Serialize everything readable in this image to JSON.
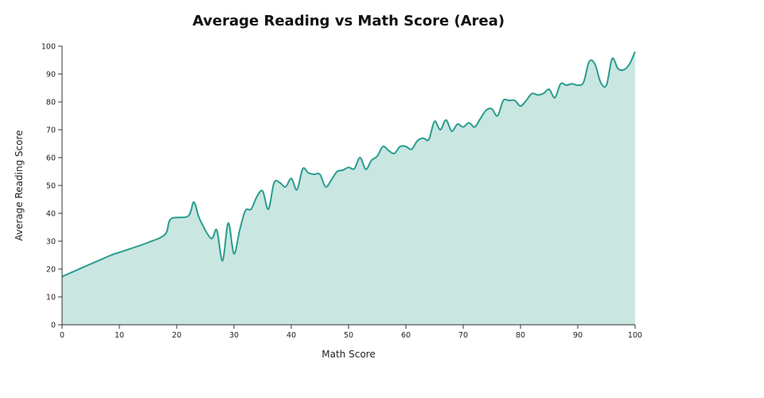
{
  "chart_data": {
    "type": "area",
    "title": "Average Reading vs Math Score (Area)",
    "xlabel": "Math Score",
    "ylabel": "Average Reading Score",
    "xlim": [
      0,
      100
    ],
    "ylim": [
      0,
      100
    ],
    "xticks": [
      0,
      10,
      20,
      30,
      40,
      50,
      60,
      70,
      80,
      90,
      100
    ],
    "yticks": [
      0,
      10,
      20,
      30,
      40,
      50,
      60,
      70,
      80,
      90,
      100
    ],
    "grid": false,
    "line_color": "#2a9d8f",
    "fill_color": "#c9e6e1",
    "series": [
      {
        "x": [
          0,
          8,
          10,
          15,
          18,
          19,
          22,
          23,
          24,
          26,
          27,
          28,
          29,
          30,
          31,
          32,
          33,
          34,
          35,
          36,
          37,
          38,
          39,
          40,
          41,
          42,
          43,
          44,
          45,
          46,
          47,
          48,
          49,
          50,
          51,
          52,
          53,
          54,
          55,
          56,
          57,
          58,
          59,
          60,
          61,
          62,
          63,
          64,
          65,
          66,
          67,
          68,
          69,
          70,
          71,
          72,
          73,
          74,
          75,
          76,
          77,
          78,
          79,
          80,
          81,
          82,
          83,
          84,
          85,
          86,
          87,
          88,
          89,
          90,
          91,
          92,
          93,
          94,
          95,
          96,
          97,
          98,
          99,
          100
        ],
        "y": [
          17.3,
          24.5,
          26,
          29.5,
          32.5,
          38,
          39,
          44,
          38,
          31,
          34,
          23,
          36.5,
          25.5,
          34,
          41,
          41.5,
          46,
          48,
          41.5,
          51,
          51,
          49.5,
          52.5,
          48.5,
          56,
          54.5,
          54,
          54,
          49.5,
          52,
          55,
          55.5,
          56.5,
          56,
          60,
          55.8,
          59,
          60.5,
          64,
          62.5,
          61.5,
          64,
          64,
          63,
          66,
          67,
          66.5,
          73,
          70,
          73.5,
          69.5,
          72,
          71,
          72.5,
          71,
          74,
          77,
          77.5,
          75,
          80.5,
          80.5,
          80.5,
          78.5,
          80.5,
          83,
          82.5,
          83,
          84.5,
          81.5,
          86.5,
          86,
          86.5,
          86,
          87,
          94.5,
          93.5,
          87,
          86,
          95.5,
          92,
          91.5,
          93.5,
          98
        ]
      }
    ]
  }
}
